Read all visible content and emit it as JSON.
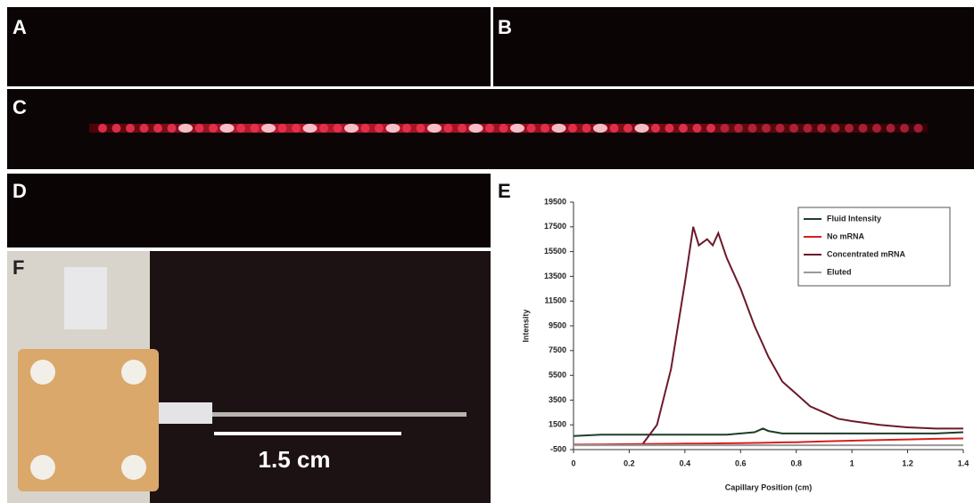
{
  "panels": {
    "labels": [
      "A",
      "B",
      "C",
      "D",
      "E",
      "F"
    ],
    "scale_bar": "1.5 cm"
  },
  "chart_data": {
    "type": "line",
    "x_label": "Capillary Position (cm)",
    "y_label": "Intensity",
    "x": [
      0,
      0.1,
      0.2,
      0.25,
      0.3,
      0.35,
      0.4,
      0.43,
      0.45,
      0.48,
      0.5,
      0.52,
      0.55,
      0.6,
      0.65,
      0.68,
      0.7,
      0.75,
      0.8,
      0.85,
      0.9,
      0.95,
      1.0,
      1.1,
      1.2,
      1.3,
      1.4
    ],
    "series": [
      {
        "name": "Fluid Intensity",
        "color": "#1f3d2a",
        "values": [
          600,
          700,
          700,
          700,
          700,
          700,
          700,
          700,
          700,
          700,
          700,
          700,
          700,
          800,
          900,
          1200,
          1000,
          800,
          800,
          800,
          800,
          800,
          800,
          800,
          800,
          800,
          900
        ]
      },
      {
        "name": "No mRNA",
        "color": "#d42020",
        "values": [
          -100,
          -80,
          -60,
          -50,
          -40,
          -30,
          -20,
          -15,
          -10,
          -5,
          0,
          5,
          10,
          20,
          40,
          50,
          60,
          80,
          100,
          130,
          160,
          190,
          220,
          270,
          320,
          370,
          400
        ]
      },
      {
        "name": "Concentrated mRNA",
        "color": "#6b1a2a",
        "values": [
          null,
          null,
          null,
          0,
          1500,
          6000,
          13000,
          17500,
          16000,
          16500,
          16000,
          17000,
          15000,
          12500,
          9500,
          8000,
          7000,
          5000,
          4000,
          3000,
          2500,
          2000,
          1800,
          1500,
          1300,
          1200,
          1200
        ]
      },
      {
        "name": "Eluted",
        "color": "#9a9a9a",
        "values": [
          -150,
          -150,
          -150,
          -150,
          -150,
          -150,
          -150,
          -150,
          -150,
          -150,
          -150,
          -150,
          -150,
          -150,
          -150,
          -150,
          -150,
          -150,
          -150,
          -150,
          -150,
          -150,
          -150,
          -150,
          -150,
          -150,
          -150
        ]
      }
    ],
    "xlim": [
      0,
      1.4
    ],
    "xticks": [
      0,
      0.2,
      0.4,
      0.6,
      0.8,
      1,
      1.2,
      1.4
    ],
    "ylim": [
      -500,
      19500
    ],
    "yticks": [
      -500,
      1500,
      3500,
      5500,
      7500,
      9500,
      11500,
      13500,
      15500,
      17500,
      19500
    ],
    "legend": "upper right"
  }
}
